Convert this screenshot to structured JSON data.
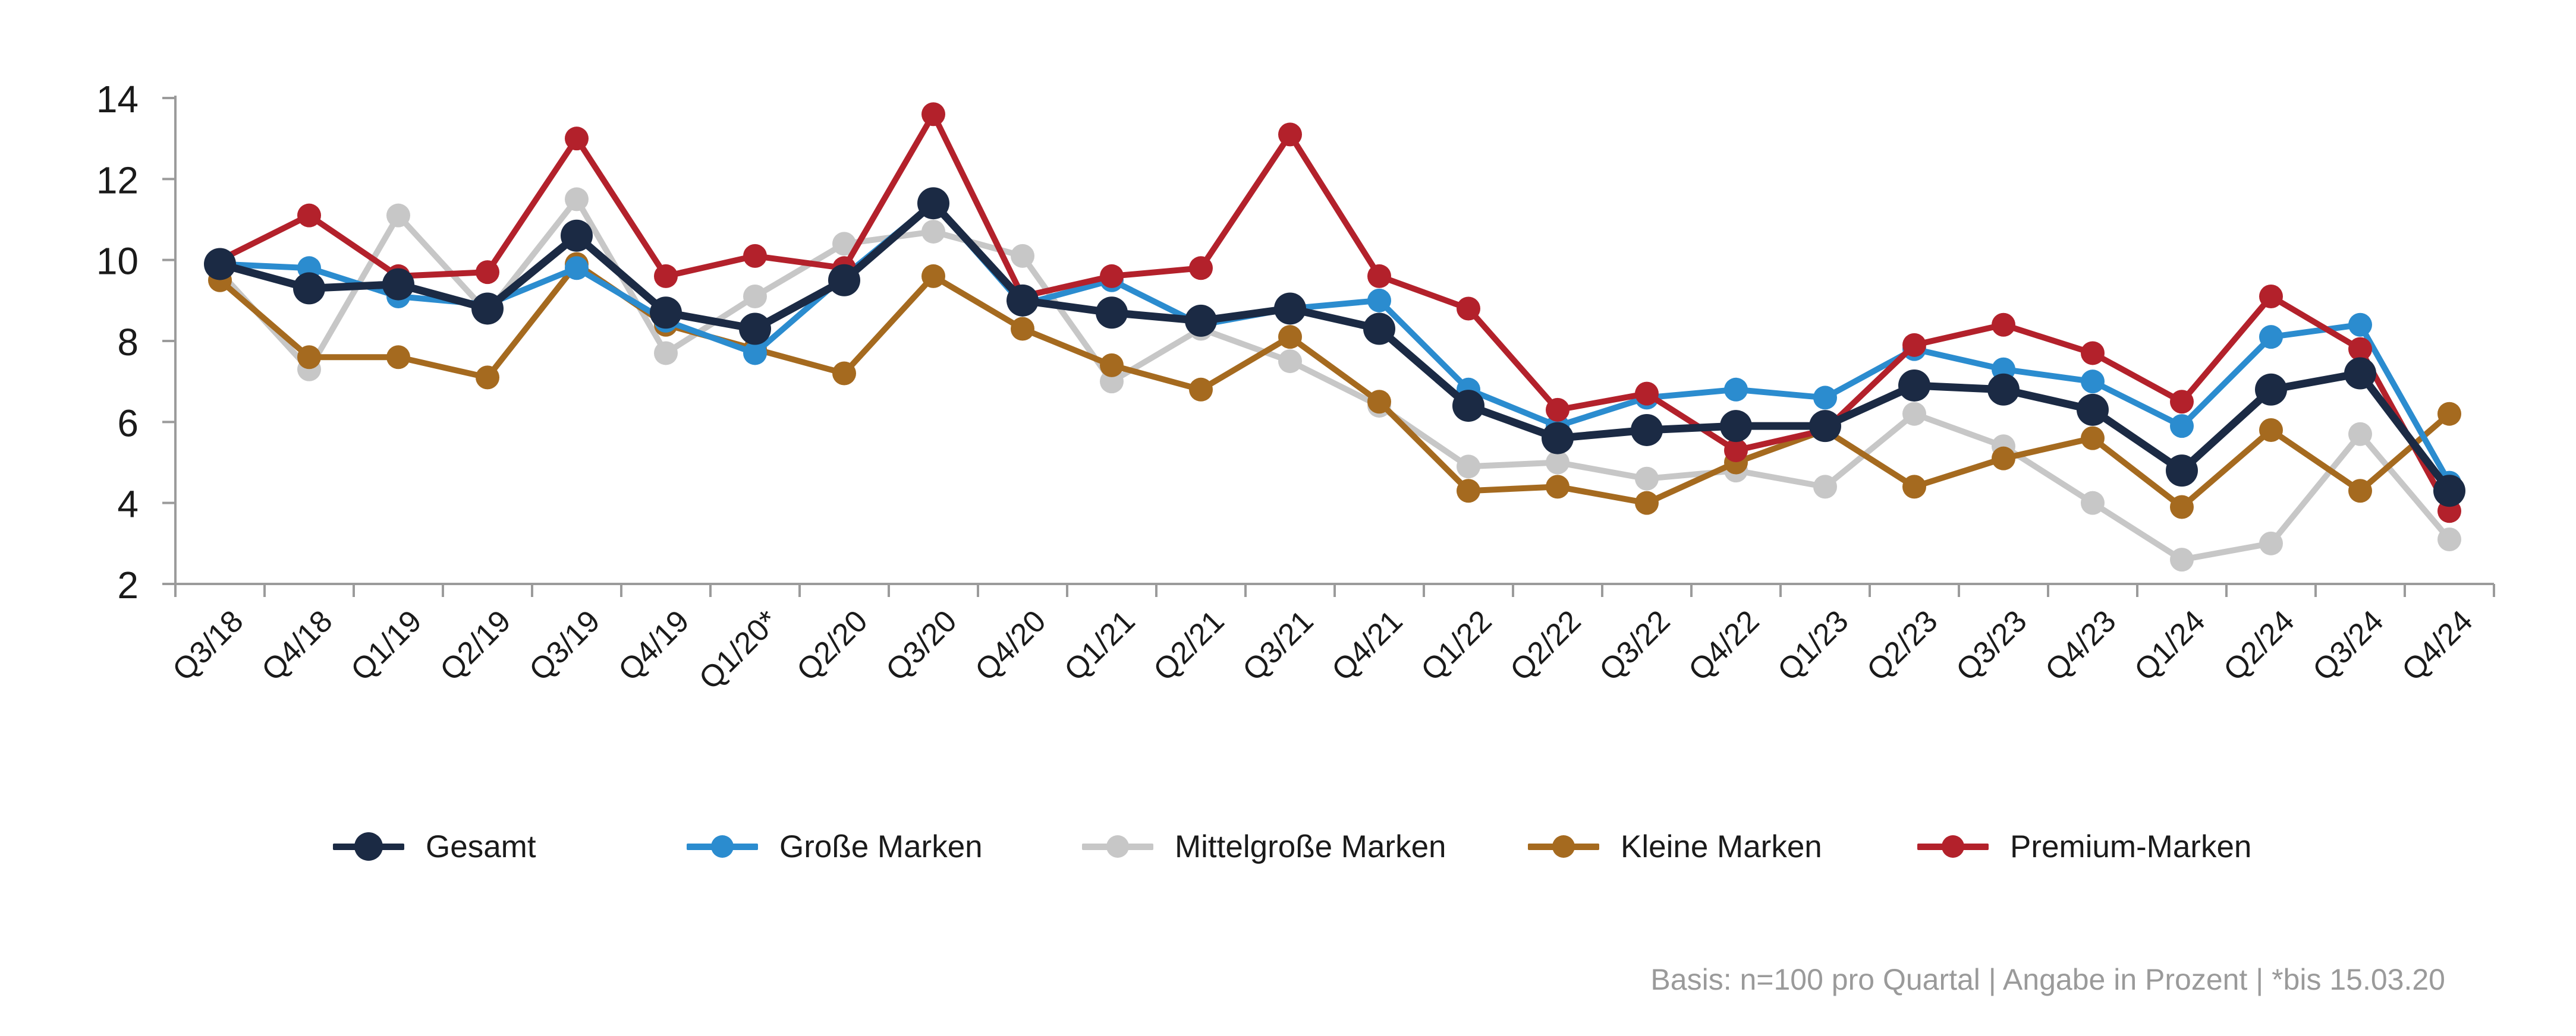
{
  "chart_data": {
    "type": "line",
    "categories": [
      "Q3/18",
      "Q4/18",
      "Q1/19",
      "Q2/19",
      "Q3/19",
      "Q4/19",
      "Q1/20*",
      "Q2/20",
      "Q3/20",
      "Q4/20",
      "Q1/21",
      "Q2/21",
      "Q3/21",
      "Q4/21",
      "Q1/22",
      "Q2/22",
      "Q3/22",
      "Q4/22",
      "Q1/23",
      "Q2/23",
      "Q3/23",
      "Q4/23",
      "Q1/24",
      "Q2/24",
      "Q3/24",
      "Q4/24"
    ],
    "ylim": [
      2,
      14
    ],
    "yticks": [
      2,
      4,
      6,
      8,
      10,
      12,
      14
    ],
    "grid": false,
    "legend_position": "bottom",
    "series": [
      {
        "name": "Gesamt",
        "color": "#1b2a44",
        "values": [
          9.9,
          9.3,
          9.4,
          8.8,
          10.6,
          8.7,
          8.3,
          9.5,
          11.4,
          9.0,
          8.7,
          8.5,
          8.8,
          8.3,
          6.4,
          5.6,
          5.8,
          5.9,
          5.9,
          6.9,
          6.8,
          6.3,
          4.8,
          6.8,
          7.2,
          4.3
        ]
      },
      {
        "name": "Große Marken",
        "color": "#2b8ccf",
        "values": [
          9.9,
          9.8,
          9.1,
          8.9,
          9.8,
          8.5,
          7.7,
          9.6,
          11.4,
          8.9,
          9.5,
          8.4,
          8.8,
          9.0,
          6.8,
          5.9,
          6.6,
          6.8,
          6.6,
          7.8,
          7.3,
          7.0,
          5.9,
          8.1,
          8.4,
          4.5
        ]
      },
      {
        "name": "Mittelgroße Marken",
        "color": "#c7c7c7",
        "values": [
          9.7,
          7.3,
          11.1,
          8.7,
          11.5,
          7.7,
          9.1,
          10.4,
          10.7,
          10.1,
          7.0,
          8.3,
          7.5,
          6.4,
          4.9,
          5.0,
          4.6,
          4.8,
          4.4,
          6.2,
          5.4,
          4.0,
          2.6,
          3.0,
          5.7,
          3.1
        ]
      },
      {
        "name": "Kleine Marken",
        "color": "#a56a1f",
        "values": [
          9.5,
          7.6,
          7.6,
          7.1,
          9.9,
          8.4,
          7.8,
          7.2,
          9.6,
          8.3,
          7.4,
          6.8,
          8.1,
          6.5,
          4.3,
          4.4,
          4.0,
          5.0,
          5.8,
          4.4,
          5.1,
          5.6,
          3.9,
          5.8,
          4.3,
          6.2
        ]
      },
      {
        "name": "Premium-Marken",
        "color": "#b3212b",
        "values": [
          10.0,
          11.1,
          9.6,
          9.7,
          13.0,
          9.6,
          10.1,
          9.8,
          13.6,
          9.1,
          9.6,
          9.8,
          13.1,
          9.6,
          8.8,
          6.3,
          6.7,
          5.3,
          5.8,
          7.9,
          8.4,
          7.7,
          6.5,
          9.1,
          7.8,
          3.8
        ]
      }
    ]
  },
  "footnote": "Basis: n=100 pro Quartal | Angabe in Prozent | *bis 15.03.20"
}
